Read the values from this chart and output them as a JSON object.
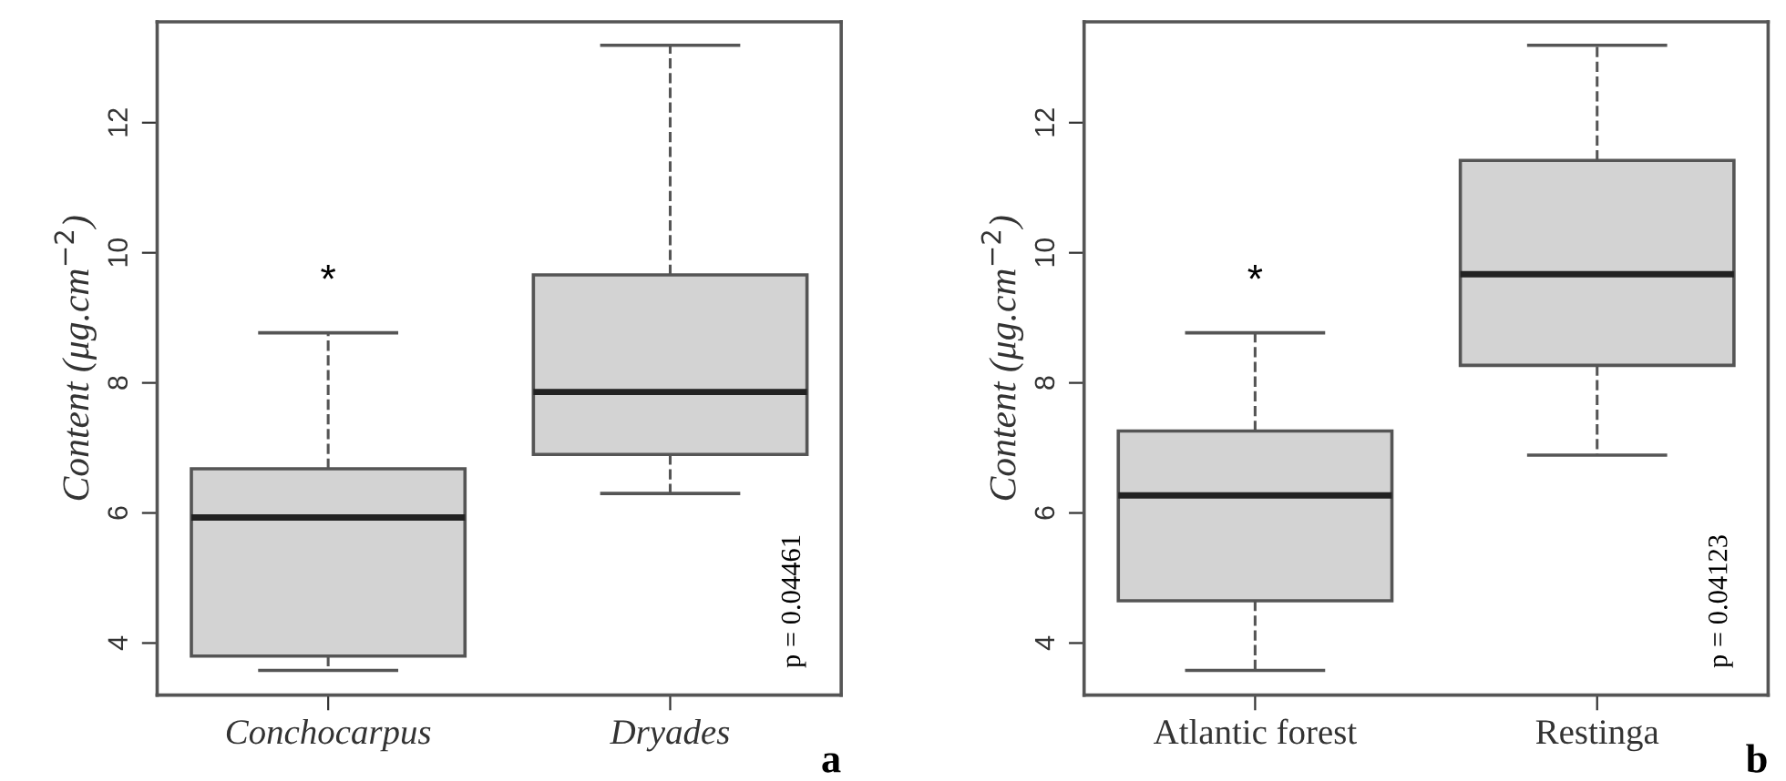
{
  "chart_data": [
    {
      "type": "box",
      "ylabel": "Content (μg.cm$^{−2}$)",
      "categories": [
        "Conchocarpus",
        "Dryades"
      ],
      "color": "#d3d3d3",
      "ylim": [
        3.2,
        13.55
      ],
      "yticks": [
        4,
        6,
        8,
        10,
        12
      ],
      "grid": false,
      "boxes": [
        {
          "low": 3.58,
          "q1": 3.8,
          "median": 5.93,
          "q3": 6.68,
          "high": 8.77
        },
        {
          "low": 6.3,
          "q1": 6.9,
          "median": 7.86,
          "q3": 9.66,
          "high": 13.19
        }
      ],
      "annotations": [
        "p = 0.04461",
        "a",
        "*"
      ]
    },
    {
      "type": "box",
      "ylabel": "Content (μg.cm$^{−2}$)",
      "categories": [
        "Atlantic forest",
        "Restinga"
      ],
      "color": "#d3d3d3",
      "ylim": [
        3.2,
        13.55
      ],
      "yticks": [
        4,
        6,
        8,
        10,
        12
      ],
      "grid": false,
      "boxes": [
        {
          "low": 3.58,
          "q1": 4.65,
          "median": 6.27,
          "q3": 7.26,
          "high": 8.77
        },
        {
          "low": 6.89,
          "q1": 8.27,
          "median": 9.67,
          "q3": 11.42,
          "high": 13.19
        }
      ],
      "annotations": [
        "p = 0.04123",
        "b",
        "*"
      ]
    }
  ]
}
